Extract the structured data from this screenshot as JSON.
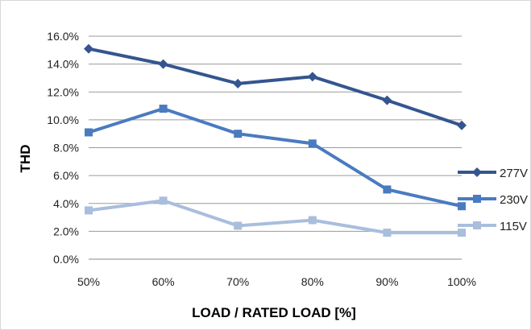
{
  "chart_data": {
    "type": "line",
    "categories": [
      "50%",
      "60%",
      "70%",
      "80%",
      "90%",
      "100%"
    ],
    "series": [
      {
        "name": "277V",
        "values": [
          15.1,
          14.0,
          12.6,
          13.1,
          11.4,
          9.6
        ],
        "color": "#34558f",
        "marker": "diamond"
      },
      {
        "name": "230V",
        "values": [
          9.1,
          10.8,
          9.0,
          8.3,
          5.0,
          3.8
        ],
        "color": "#4a7bc0",
        "marker": "square"
      },
      {
        "name": "115V",
        "values": [
          3.5,
          4.2,
          2.4,
          2.8,
          1.9,
          1.9
        ],
        "color": "#a9bedd",
        "marker": "square"
      }
    ],
    "y_ticks": [
      "0.0%",
      "2.0%",
      "4.0%",
      "6.0%",
      "8.0%",
      "10.0%",
      "12.0%",
      "14.0%",
      "16.0%"
    ],
    "ylim": [
      0,
      16
    ],
    "xlabel": "LOAD / RATED LOAD [%]",
    "ylabel": "THD",
    "grid": true,
    "legend_position": "right"
  }
}
